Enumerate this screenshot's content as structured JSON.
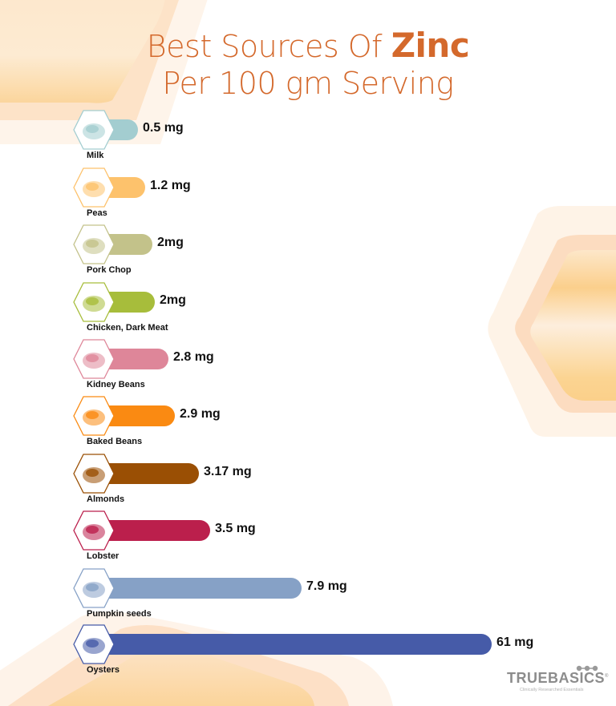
{
  "title": {
    "line1_prefix": "Best Sources Of ",
    "line1_emphasis": "Zinc",
    "line2": "Per 100 gm Serving"
  },
  "brand": {
    "name": "TRUEBASICS",
    "tagline": "Clinically Researched Essentials",
    "registered_mark": "®"
  },
  "colors": {
    "title": "#d4692c",
    "background_hex": "#fbd9a8"
  },
  "items": [
    {
      "name": "Milk",
      "value_label": "0.5 mg",
      "color": "#a3cdd0",
      "icon": "milk-bottle-icon",
      "bar_end": 172
    },
    {
      "name": "Peas",
      "value_label": "1.2 mg",
      "color": "#fdc26c",
      "icon": "peas-icon",
      "bar_end": 181
    },
    {
      "name": "Pork Chop",
      "value_label": "2mg",
      "color": "#c3c28a",
      "icon": "pork-chop-icon",
      "bar_end": 190
    },
    {
      "name": "Chicken, Dark Meat",
      "value_label": "2mg",
      "color": "#a7bd3b",
      "icon": "chicken-icon",
      "bar_end": 193
    },
    {
      "name": "Kidney Beans",
      "value_label": "2.8 mg",
      "color": "#de8699",
      "icon": "kidney-beans-icon",
      "bar_end": 210
    },
    {
      "name": "Baked Beans",
      "value_label": "2.9 mg",
      "color": "#fa8a12",
      "icon": "baked-beans-icon",
      "bar_end": 218
    },
    {
      "name": "Almonds",
      "value_label": "3.17 mg",
      "color": "#9a4f04",
      "icon": "almonds-icon",
      "bar_end": 248
    },
    {
      "name": "Lobster",
      "value_label": "3.5 mg",
      "color": "#bb1f4c",
      "icon": "lobster-icon",
      "bar_end": 262
    },
    {
      "name": "Pumpkin seeds",
      "value_label": "7.9 mg",
      "color": "#86a1c6",
      "icon": "pumpkin-seeds-icon",
      "bar_end": 376
    },
    {
      "name": "Oysters",
      "value_label": "61 mg",
      "color": "#465ba8",
      "icon": "oysters-icon",
      "bar_end": 613
    }
  ],
  "chart_data": {
    "type": "bar",
    "orientation": "horizontal",
    "title": "Best Sources Of Zinc Per 100 gm Serving",
    "xlabel": "",
    "ylabel": "",
    "unit": "mg",
    "categories": [
      "Milk",
      "Peas",
      "Pork Chop",
      "Chicken, Dark Meat",
      "Kidney Beans",
      "Baked Beans",
      "Almonds",
      "Lobster",
      "Pumpkin seeds",
      "Oysters"
    ],
    "values": [
      0.5,
      1.2,
      2,
      2,
      2.8,
      2.9,
      3.17,
      3.5,
      7.9,
      61
    ],
    "value_labels": [
      "0.5 mg",
      "1.2 mg",
      "2mg",
      "2mg",
      "2.8 mg",
      "2.9 mg",
      "3.17 mg",
      "3.5 mg",
      "7.9 mg",
      "61 mg"
    ],
    "grid": false,
    "legend": "none",
    "axes_visible": false
  }
}
